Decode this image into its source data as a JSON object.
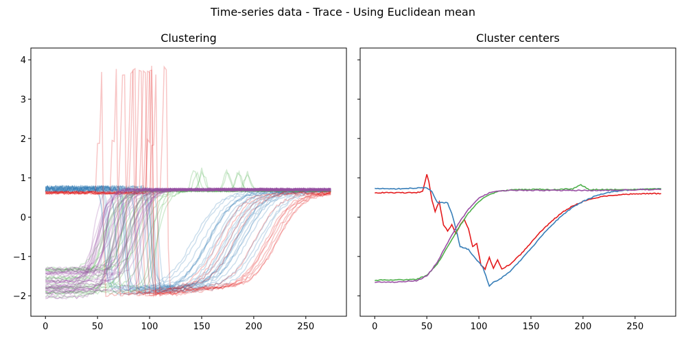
{
  "suptitle": "Time-series data - Trace - Using Euclidean mean",
  "colors": {
    "red": "#e41a1c",
    "blue": "#377eb8",
    "green": "#4daf4a",
    "purple": "#984ea3"
  },
  "chart_data": [
    {
      "type": "line",
      "title": "Clustering",
      "xlabel": "",
      "ylabel": "",
      "xlim": [
        -14,
        289
      ],
      "ylim": [
        -2.52,
        4.3
      ],
      "xticks": [
        0,
        50,
        100,
        150,
        200,
        250
      ],
      "yticks": [
        -2,
        -1,
        0,
        1,
        2,
        3,
        4
      ],
      "grid": false,
      "legend": "none",
      "line_opacity": 0.25,
      "series": [
        {
          "cluster": "red",
          "color": "#e41a1c",
          "count": 12,
          "pattern": "spike",
          "pre_level": 0.62,
          "spike_start_range": [
            50,
            115
          ],
          "spike_peak_range": [
            3.7,
            3.97
          ],
          "trough_level": -2.0,
          "rise_center_range": [
            160,
            225
          ],
          "final_level": 0.62
        },
        {
          "cluster": "blue",
          "color": "#377eb8",
          "count": 25,
          "pattern": "drop-rise",
          "pre_level": 0.72,
          "drop_range": [
            55,
            110
          ],
          "trough_level": -1.95,
          "rise_center_range": [
            140,
            215
          ],
          "final_level": 0.68
        },
        {
          "cluster": "green",
          "color": "#4daf4a",
          "count": 20,
          "pattern": "rise",
          "pre_level_range": [
            -2.05,
            -1.3
          ],
          "rise_center_range": [
            55,
            110
          ],
          "overshoot": 1.25,
          "final_level": 0.68
        },
        {
          "cluster": "purple",
          "color": "#984ea3",
          "count": 35,
          "pattern": "rise",
          "pre_level_range": [
            -2.08,
            -1.25
          ],
          "rise_center_range": [
            45,
            95
          ],
          "final_level": 0.7
        }
      ]
    },
    {
      "type": "line",
      "title": "Cluster centers",
      "xlabel": "",
      "ylabel": "",
      "xlim": [
        -14,
        289
      ],
      "ylim": [
        -2.52,
        4.3
      ],
      "xticks": [
        0,
        50,
        100,
        150,
        200,
        250
      ],
      "yticks": [
        -2,
        -1,
        0,
        1,
        2,
        3,
        4
      ],
      "yticklabels_visible": false,
      "grid": false,
      "legend": "none",
      "series": [
        {
          "cluster": "red",
          "color": "#e41a1c",
          "x": [
            0,
            40,
            46,
            50,
            52,
            55,
            58,
            62,
            66,
            70,
            74,
            78,
            82,
            86,
            90,
            94,
            98,
            102,
            106,
            110,
            114,
            118,
            122,
            130,
            140,
            150,
            160,
            170,
            180,
            190,
            200,
            210,
            220,
            230,
            240,
            250,
            260,
            275
          ],
          "y": [
            0.62,
            0.62,
            0.66,
            1.08,
            0.9,
            0.42,
            0.15,
            0.4,
            -0.2,
            -0.35,
            -0.2,
            -0.42,
            -0.2,
            -0.05,
            -0.3,
            -0.75,
            -0.68,
            -1.22,
            -1.32,
            -1.02,
            -1.3,
            -1.08,
            -1.32,
            -1.2,
            -0.95,
            -0.65,
            -0.35,
            -0.1,
            0.12,
            0.28,
            0.4,
            0.48,
            0.53,
            0.56,
            0.58,
            0.59,
            0.6,
            0.6
          ]
        },
        {
          "cluster": "blue",
          "color": "#377eb8",
          "x": [
            0,
            20,
            40,
            50,
            55,
            60,
            65,
            70,
            74,
            78,
            82,
            86,
            90,
            95,
            100,
            104,
            108,
            110,
            114,
            120,
            130,
            140,
            150,
            160,
            170,
            180,
            190,
            200,
            210,
            220,
            230,
            240,
            250,
            260,
            275
          ],
          "y": [
            0.73,
            0.72,
            0.74,
            0.75,
            0.65,
            0.37,
            0.37,
            0.36,
            0.1,
            -0.3,
            -0.75,
            -0.78,
            -0.82,
            -1.0,
            -1.15,
            -1.28,
            -1.6,
            -1.75,
            -1.65,
            -1.58,
            -1.38,
            -1.1,
            -0.8,
            -0.48,
            -0.2,
            0.05,
            0.25,
            0.4,
            0.52,
            0.6,
            0.65,
            0.68,
            0.7,
            0.71,
            0.72
          ]
        },
        {
          "cluster": "green",
          "color": "#4daf4a",
          "x": [
            0,
            20,
            40,
            50,
            60,
            70,
            80,
            90,
            100,
            110,
            120,
            130,
            140,
            150,
            160,
            170,
            180,
            190,
            195,
            198,
            202,
            206,
            210,
            220,
            240,
            260,
            275
          ],
          "y": [
            -1.6,
            -1.6,
            -1.58,
            -1.48,
            -1.2,
            -0.75,
            -0.3,
            0.1,
            0.4,
            0.58,
            0.66,
            0.69,
            0.7,
            0.7,
            0.71,
            0.7,
            0.71,
            0.72,
            0.78,
            0.82,
            0.76,
            0.7,
            0.7,
            0.7,
            0.7,
            0.71,
            0.72
          ]
        },
        {
          "cluster": "purple",
          "color": "#984ea3",
          "x": [
            0,
            20,
            40,
            50,
            60,
            70,
            80,
            90,
            100,
            110,
            120,
            130,
            140,
            160,
            180,
            200,
            220,
            240,
            260,
            275
          ],
          "y": [
            -1.65,
            -1.65,
            -1.62,
            -1.5,
            -1.15,
            -0.65,
            -0.18,
            0.2,
            0.48,
            0.62,
            0.67,
            0.68,
            0.68,
            0.68,
            0.68,
            0.68,
            0.68,
            0.69,
            0.7,
            0.7
          ]
        }
      ]
    }
  ]
}
